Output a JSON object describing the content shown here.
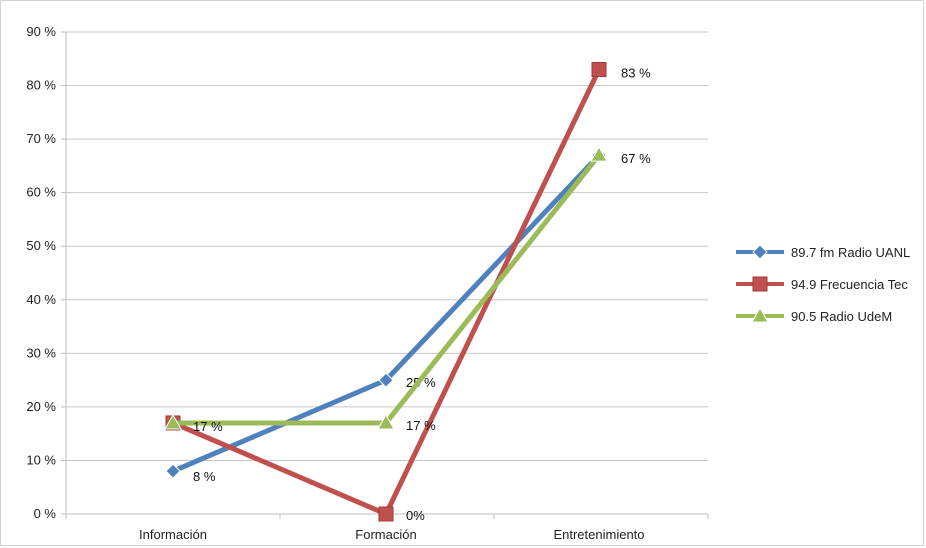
{
  "chart_data": {
    "type": "line",
    "categories": [
      "Información",
      "Formación",
      "Entretenimiento"
    ],
    "ylim": [
      0,
      90
    ],
    "y_ticks": [
      0,
      10,
      20,
      30,
      40,
      50,
      60,
      70,
      80,
      90
    ],
    "y_tick_labels": [
      "0 %",
      "10 %",
      "20 %",
      "30 %",
      "40 %",
      "50 %",
      "60 %",
      "70 %",
      "80 %",
      "90 %"
    ],
    "grid": true,
    "legend_position": "right",
    "series": [
      {
        "name": "89.7 fm Radio UANL",
        "values": [
          8,
          25,
          67
        ],
        "labels": [
          "8 %",
          "25 %",
          ""
        ],
        "color": "#4f81bd",
        "marker": "diamond"
      },
      {
        "name": "94.9 Frecuencia Tec",
        "values": [
          17,
          0,
          83
        ],
        "labels": [
          "",
          "0%",
          "83 %"
        ],
        "color": "#c0504d",
        "marker": "square"
      },
      {
        "name": "90.5 Radio UdeM",
        "values": [
          17,
          17,
          67
        ],
        "labels": [
          "17 %",
          "17 %",
          "67 %"
        ],
        "color": "#9bbb59",
        "marker": "triangle"
      }
    ]
  }
}
